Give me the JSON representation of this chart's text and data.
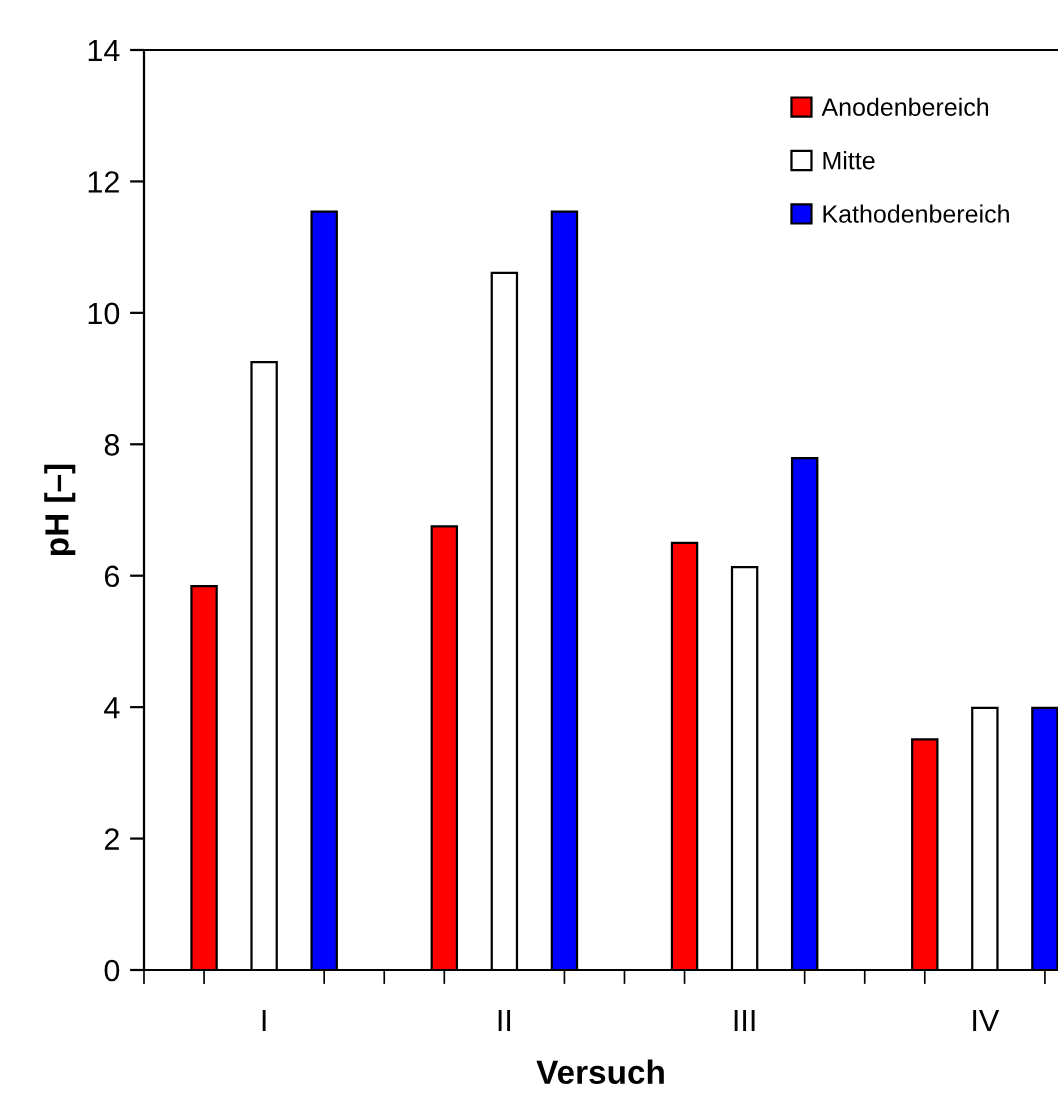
{
  "chart_data": {
    "type": "bar",
    "xlabel": "Versuch",
    "ylabel": "pH [–]",
    "categories": [
      "I",
      "II",
      "III",
      "IV"
    ],
    "series": [
      {
        "name": "Anodenbereich",
        "color": "#ff0000",
        "values": [
          5.84,
          6.75,
          6.5,
          3.51
        ]
      },
      {
        "name": "Mitte",
        "color": "#ffffff",
        "values": [
          9.25,
          10.61,
          6.13,
          3.99
        ]
      },
      {
        "name": "Kathodenbereich",
        "color": "#0000ff",
        "values": [
          11.54,
          11.54,
          7.79,
          3.99
        ]
      }
    ],
    "ylim": [
      0,
      14
    ],
    "yticks": [
      0,
      2,
      4,
      6,
      8,
      10,
      12,
      14
    ],
    "grid": false,
    "legend": "top right"
  }
}
